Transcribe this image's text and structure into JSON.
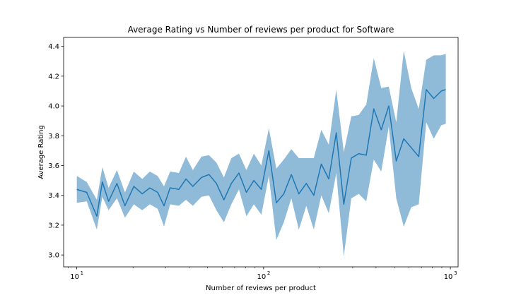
{
  "chart_data": {
    "type": "area",
    "title": "Average Rating vs Number of reviews per product for Software",
    "xlabel": "Number of reviews per product",
    "ylabel": "Average Rating",
    "xscale": "log",
    "xlim": [
      8.5,
      1100
    ],
    "ylim": [
      2.92,
      4.46
    ],
    "grid": false,
    "legend": "none",
    "x_ticks": [
      {
        "value": 10,
        "base": "10",
        "exp": "1"
      },
      {
        "value": 100,
        "base": "10",
        "exp": "2"
      },
      {
        "value": 1000,
        "base": "10",
        "exp": "3"
      }
    ],
    "y_ticks": [
      {
        "value": 3.0,
        "label": "3.0"
      },
      {
        "value": 3.2,
        "label": "3.2"
      },
      {
        "value": 3.4,
        "label": "3.4"
      },
      {
        "value": 3.6,
        "label": "3.6"
      },
      {
        "value": 3.8,
        "label": "3.8"
      },
      {
        "value": 4.0,
        "label": "4.0"
      },
      {
        "value": 4.2,
        "label": "4.2"
      },
      {
        "value": 4.4,
        "label": "4.4"
      }
    ],
    "colors": {
      "line": "#1f77b4",
      "band": "#1f77b4",
      "band_opacity": 0.5
    },
    "series": [
      {
        "x": [
          10.0,
          11.3,
          12.8,
          13.7,
          14.8,
          16.4,
          18.1,
          20.2,
          22.4,
          24.6,
          27.1,
          29.3,
          31.6,
          35.2,
          38.4,
          41.8,
          46.5,
          51.0,
          55.9,
          61.3,
          67.2,
          73.8,
          80.9,
          88.7,
          97.3,
          106.7,
          117.0,
          128.3,
          140.8,
          154.4,
          169.3,
          185.7,
          203.7,
          223.4,
          245.0,
          268.8,
          294.8,
          323.3,
          354.6,
          389.0,
          426.6,
          467.9,
          513.2,
          562.9,
          617.4,
          677.2,
          742.7,
          814.6,
          893.5,
          945.0
        ],
        "y": [
          3.44,
          3.42,
          3.26,
          3.49,
          3.36,
          3.48,
          3.33,
          3.46,
          3.41,
          3.45,
          3.42,
          3.33,
          3.45,
          3.44,
          3.51,
          3.46,
          3.52,
          3.54,
          3.48,
          3.37,
          3.48,
          3.55,
          3.42,
          3.5,
          3.44,
          3.7,
          3.35,
          3.41,
          3.54,
          3.41,
          3.48,
          3.4,
          3.61,
          3.51,
          3.82,
          3.34,
          3.65,
          3.68,
          3.67,
          3.98,
          3.84,
          4.0,
          3.63,
          3.78,
          3.72,
          3.66,
          4.11,
          4.05,
          4.1,
          4.11
        ],
        "lower": [
          3.35,
          3.36,
          3.17,
          3.39,
          3.3,
          3.38,
          3.25,
          3.34,
          3.3,
          3.34,
          3.31,
          3.19,
          3.34,
          3.33,
          3.37,
          3.33,
          3.39,
          3.4,
          3.3,
          3.22,
          3.34,
          3.44,
          3.26,
          3.34,
          3.27,
          3.53,
          3.1,
          3.22,
          3.38,
          3.17,
          3.33,
          3.17,
          3.4,
          3.28,
          3.55,
          2.99,
          3.38,
          3.41,
          3.36,
          3.64,
          3.56,
          3.86,
          3.38,
          3.19,
          3.32,
          3.34,
          3.89,
          3.78,
          3.87,
          3.88
        ],
        "upper": [
          3.53,
          3.49,
          3.37,
          3.59,
          3.45,
          3.57,
          3.42,
          3.56,
          3.51,
          3.56,
          3.53,
          3.46,
          3.56,
          3.55,
          3.66,
          3.57,
          3.66,
          3.67,
          3.62,
          3.52,
          3.65,
          3.68,
          3.57,
          3.68,
          3.6,
          3.85,
          3.58,
          3.64,
          3.71,
          3.65,
          3.65,
          3.65,
          3.84,
          3.74,
          4.11,
          3.69,
          3.93,
          3.94,
          4.01,
          4.32,
          4.12,
          4.13,
          3.89,
          4.37,
          4.12,
          3.98,
          4.31,
          4.34,
          4.34,
          4.35
        ]
      }
    ]
  }
}
